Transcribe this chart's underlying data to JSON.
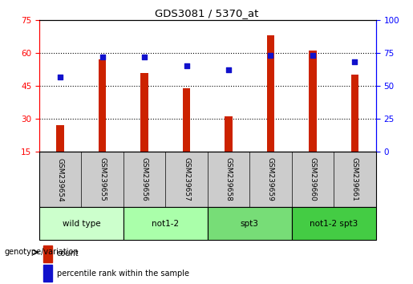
{
  "title": "GDS3081 / 5370_at",
  "samples": [
    "GSM239654",
    "GSM239655",
    "GSM239656",
    "GSM239657",
    "GSM239658",
    "GSM239659",
    "GSM239660",
    "GSM239661"
  ],
  "bar_values": [
    27,
    57,
    51,
    44,
    31,
    68,
    61,
    50
  ],
  "percentile_values": [
    57,
    72,
    72,
    65,
    62,
    73,
    73,
    68
  ],
  "bar_color": "#cc2200",
  "dot_color": "#1111cc",
  "ylim_left": [
    15,
    75
  ],
  "ylim_right": [
    0,
    100
  ],
  "yticks_left": [
    15,
    30,
    45,
    60,
    75
  ],
  "yticks_right": [
    0,
    25,
    50,
    75,
    100
  ],
  "groups": [
    {
      "label": "wild type",
      "cols": 2
    },
    {
      "label": "not1-2",
      "cols": 2
    },
    {
      "label": "spt3",
      "cols": 2
    },
    {
      "label": "not1-2 spt3",
      "cols": 2
    }
  ],
  "group_bg_colors": [
    "#ccffcc",
    "#aaffaa",
    "#77dd77",
    "#44cc44"
  ],
  "bar_width": 0.18,
  "grid_color": "#000000",
  "background_color": "#ffffff",
  "plot_bg_color": "#ffffff",
  "sample_bg_color": "#cccccc",
  "legend_count_label": "count",
  "legend_percentile_label": "percentile rank within the sample"
}
